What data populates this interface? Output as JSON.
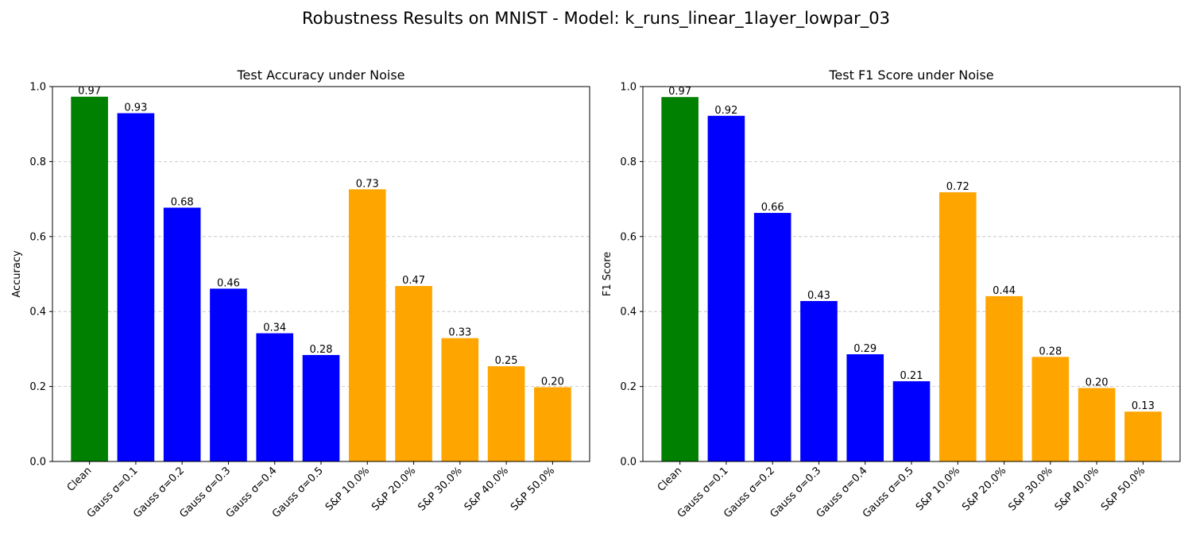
{
  "figure": {
    "suptitle": "Robustness Results on MNIST - Model: k_runs_linear_1layer_lowpar_03"
  },
  "colors": {
    "clean": "#008000",
    "gauss": "#0000ff",
    "sp": "#ffa500",
    "grid": "#b0b0b0"
  },
  "chart_data": [
    {
      "type": "bar",
      "title": "Test Accuracy under Noise",
      "xlabel": "",
      "ylabel": "Accuracy",
      "ylim": [
        0,
        1.0
      ],
      "yticks": [
        "0.0",
        "0.2",
        "0.4",
        "0.6",
        "0.8",
        "1.0"
      ],
      "grid": "y-dashed",
      "categories": [
        "Clean",
        "Gauss σ=0.1",
        "Gauss σ=0.2",
        "Gauss σ=0.3",
        "Gauss σ=0.4",
        "Gauss σ=0.5",
        "S&P 10.0%",
        "S&P 20.0%",
        "S&P 30.0%",
        "S&P 40.0%",
        "S&P 50.0%"
      ],
      "groups": [
        "clean",
        "gauss",
        "gauss",
        "gauss",
        "gauss",
        "gauss",
        "sp",
        "sp",
        "sp",
        "sp",
        "sp"
      ],
      "values": [
        0.973,
        0.929,
        0.677,
        0.461,
        0.342,
        0.284,
        0.726,
        0.468,
        0.329,
        0.254,
        0.198
      ],
      "labels": [
        "0.97",
        "0.93",
        "0.68",
        "0.46",
        "0.34",
        "0.28",
        "0.73",
        "0.47",
        "0.33",
        "0.25",
        "0.20"
      ]
    },
    {
      "type": "bar",
      "title": "Test F1 Score under Noise",
      "xlabel": "",
      "ylabel": "F1 Score",
      "ylim": [
        0,
        1.0
      ],
      "yticks": [
        "0.0",
        "0.2",
        "0.4",
        "0.6",
        "0.8",
        "1.0"
      ],
      "grid": "y-dashed",
      "categories": [
        "Clean",
        "Gauss σ=0.1",
        "Gauss σ=0.2",
        "Gauss σ=0.3",
        "Gauss σ=0.4",
        "Gauss σ=0.5",
        "S&P 10.0%",
        "S&P 20.0%",
        "S&P 30.0%",
        "S&P 40.0%",
        "S&P 50.0%"
      ],
      "groups": [
        "clean",
        "gauss",
        "gauss",
        "gauss",
        "gauss",
        "gauss",
        "sp",
        "sp",
        "sp",
        "sp",
        "sp"
      ],
      "values": [
        0.972,
        0.922,
        0.663,
        0.428,
        0.286,
        0.214,
        0.718,
        0.441,
        0.279,
        0.196,
        0.133
      ],
      "labels": [
        "0.97",
        "0.92",
        "0.66",
        "0.43",
        "0.29",
        "0.21",
        "0.72",
        "0.44",
        "0.28",
        "0.20",
        "0.13"
      ]
    }
  ]
}
